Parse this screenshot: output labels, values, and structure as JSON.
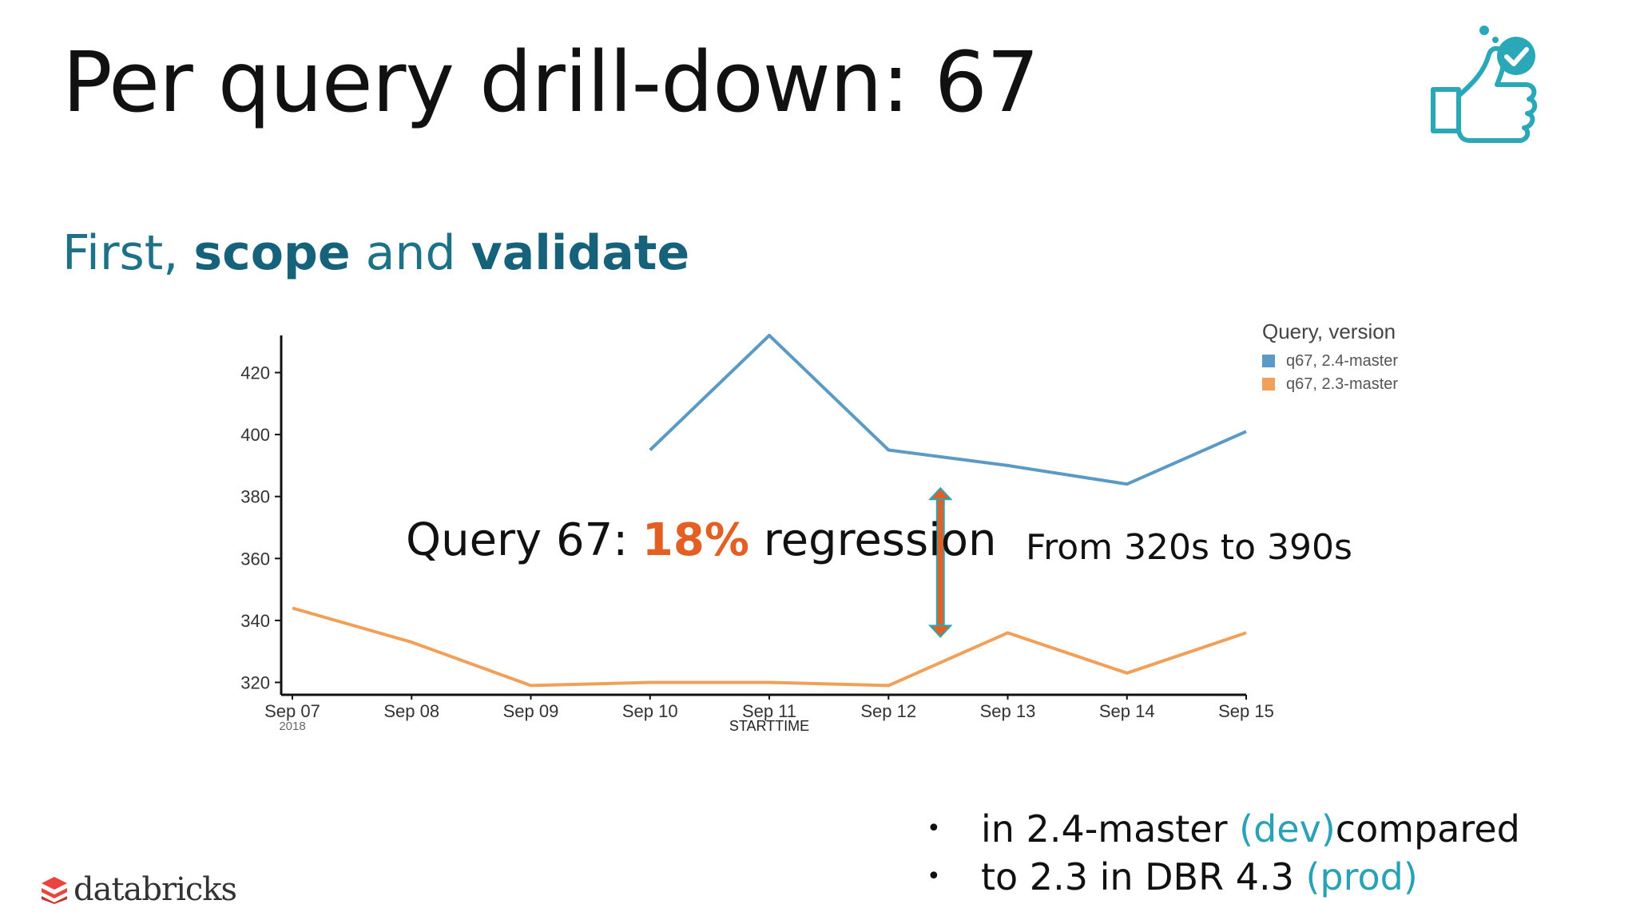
{
  "slide": {
    "title": "Per query drill-down: 67",
    "subtitle": {
      "prefix": "First, ",
      "bold1": "scope",
      "middle": " and ",
      "bold2": "validate"
    },
    "callout": {
      "prefix": "Query 67:  ",
      "percent": "18%",
      "suffix": " regression"
    },
    "from_to": "From 320s to 390s",
    "bullets": [
      {
        "before": "in 2.4-master ",
        "accent": "(dev)",
        "after": " compared"
      },
      {
        "before": "to 2.3 in DBR 4.3 ",
        "accent": "(prod)",
        "after": ""
      }
    ],
    "logo_text": "databricks",
    "icon": "thumbs-up-check-icon",
    "colors": {
      "title": "#111111",
      "subtitle": "#1d7287",
      "highlight": "#e35f24",
      "accent": "#29a2b6",
      "icon": "#2aa8b8"
    }
  },
  "chart_data": {
    "type": "line",
    "title": "",
    "xlabel": "STARTTIME",
    "ylabel": "",
    "x": [
      "Sep 07",
      "Sep 08",
      "Sep 09",
      "Sep 10",
      "Sep 11",
      "Sep 12",
      "Sep 13",
      "Sep 14",
      "Sep 15"
    ],
    "x_sublabel": "2018",
    "yticks": [
      320,
      340,
      360,
      380,
      400,
      420
    ],
    "ylim": [
      316,
      432
    ],
    "legend": {
      "title": "Query, version",
      "position": "top-right"
    },
    "grid": false,
    "series": [
      {
        "name": "q67, 2.4-master",
        "color": "#5b9ac4",
        "values": [
          null,
          null,
          null,
          395,
          432,
          395,
          390,
          384,
          401
        ]
      },
      {
        "name": "q67, 2.3-master",
        "color": "#f0a058",
        "values": [
          344,
          333,
          319,
          320,
          320,
          319,
          336,
          323,
          336
        ]
      }
    ],
    "annotation": {
      "type": "double-arrow",
      "at_x": "Sep 12",
      "from": 384,
      "to": 336,
      "color": "#e35f24"
    }
  }
}
